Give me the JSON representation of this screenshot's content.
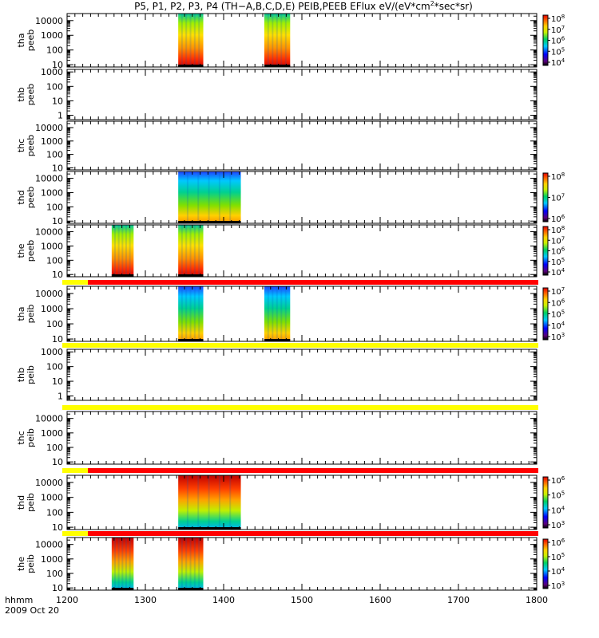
{
  "title_parts": [
    "P5, P1, P2, P3, P4 (TH−A,B,C,D,E) PEIB,PEEB EFlux eV/(eV*cm",
    "2",
    "*sec*sr)"
  ],
  "xaxis": {
    "label_line1": "hhmm",
    "label_line2": "2009 Oct 20",
    "ticks": [
      "1200",
      "1300",
      "1400",
      "1500",
      "1600",
      "1700",
      "1800"
    ],
    "tick_values": [
      1200,
      1300,
      1400,
      1500,
      1600,
      1700,
      1800
    ],
    "range": [
      1200,
      1800
    ]
  },
  "chart_data": [
    {
      "type": "heatmap",
      "probe": "tha",
      "ylabel": [
        "tha",
        "peeb"
      ],
      "yticks": [
        "10000",
        "1000",
        "100",
        "10"
      ],
      "ylog": true,
      "ylim": [
        7,
        30000
      ],
      "bursts": [
        [
          1342,
          1374
        ],
        [
          1452,
          1485
        ]
      ],
      "palette": "warm",
      "colorbar": {
        "labels": [
          "10",
          "10",
          "10",
          "10",
          "10"
        ],
        "exponents": [
          "8",
          "7",
          "6",
          "5",
          "4"
        ]
      }
    },
    {
      "type": "heatmap",
      "probe": "thb",
      "ylabel": [
        "thb",
        "peeb"
      ],
      "yticks": [
        "1000",
        "100",
        "10",
        "1"
      ],
      "ylog": true,
      "ylim": [
        0.5,
        1500
      ],
      "bursts": [],
      "colorbar": null
    },
    {
      "type": "heatmap",
      "probe": "thc",
      "ylabel": [
        "thc",
        "peeb"
      ],
      "yticks": [
        "10000",
        "1000",
        "100",
        "10"
      ],
      "ylog": true,
      "ylim": [
        7,
        30000
      ],
      "bursts": [],
      "colorbar": null
    },
    {
      "type": "heatmap",
      "probe": "thd",
      "ylabel": [
        "thd",
        "peeb"
      ],
      "yticks": [
        "10000",
        "1000",
        "100",
        "10"
      ],
      "ylog": true,
      "ylim": [
        7,
        30000
      ],
      "bursts": [
        [
          1342,
          1422
        ]
      ],
      "palette": "cool",
      "colorbar": {
        "labels": [
          "10",
          "10",
          "10"
        ],
        "exponents": [
          "8",
          "7",
          "6"
        ]
      }
    },
    {
      "type": "heatmap",
      "probe": "the",
      "ylabel": [
        "the",
        "peeb"
      ],
      "yticks": [
        "10000",
        "1000",
        "100",
        "10"
      ],
      "ylog": true,
      "ylim": [
        7,
        30000
      ],
      "bursts": [
        [
          1257,
          1285
        ],
        [
          1342,
          1374
        ]
      ],
      "palette": "warm",
      "colorbar": {
        "labels": [
          "10",
          "10",
          "10",
          "10",
          "10"
        ],
        "exponents": [
          "8",
          "7",
          "6",
          "5",
          "4"
        ]
      }
    },
    {
      "type": "heatmap",
      "probe": "tha",
      "ylabel": [
        "tha",
        "peib"
      ],
      "yticks": [
        "10000",
        "1000",
        "100",
        "10"
      ],
      "ylog": true,
      "ylim": [
        7,
        30000
      ],
      "bursts": [
        [
          1342,
          1374
        ],
        [
          1452,
          1485
        ]
      ],
      "palette": "cool",
      "flag": "yellow-red",
      "colorbar": {
        "labels": [
          "10",
          "10",
          "10",
          "10",
          "10"
        ],
        "exponents": [
          "7",
          "6",
          "5",
          "4",
          "3"
        ]
      }
    },
    {
      "type": "heatmap",
      "probe": "thb",
      "ylabel": [
        "thb",
        "peib"
      ],
      "yticks": [
        "1000",
        "100",
        "10",
        "1"
      ],
      "ylog": true,
      "ylim": [
        0.5,
        1500
      ],
      "bursts": [],
      "flag": "yellow",
      "colorbar": null
    },
    {
      "type": "heatmap",
      "probe": "thc",
      "ylabel": [
        "thc",
        "peib"
      ],
      "yticks": [
        "10000",
        "1000",
        "100",
        "10"
      ],
      "ylog": true,
      "ylim": [
        7,
        30000
      ],
      "bursts": [],
      "flag": "yellow",
      "colorbar": null
    },
    {
      "type": "heatmap",
      "probe": "thd",
      "ylabel": [
        "thd",
        "peib"
      ],
      "yticks": [
        "10000",
        "1000",
        "100",
        "10"
      ],
      "ylog": true,
      "ylim": [
        7,
        30000
      ],
      "bursts": [
        [
          1342,
          1422
        ]
      ],
      "palette": "hot-top",
      "flag": "yellow-red",
      "colorbar": {
        "labels": [
          "10",
          "10",
          "10",
          "10"
        ],
        "exponents": [
          "6",
          "5",
          "4",
          "3"
        ]
      }
    },
    {
      "type": "heatmap",
      "probe": "the",
      "ylabel": [
        "the",
        "peib"
      ],
      "yticks": [
        "10000",
        "1000",
        "100",
        "10"
      ],
      "ylog": true,
      "ylim": [
        7,
        30000
      ],
      "bursts": [
        [
          1257,
          1285
        ],
        [
          1342,
          1374
        ]
      ],
      "palette": "hot-top",
      "flag": "yellow-red",
      "colorbar": {
        "labels": [
          "10",
          "10",
          "10",
          "10"
        ],
        "exponents": [
          "6",
          "5",
          "4",
          "3"
        ]
      }
    }
  ]
}
